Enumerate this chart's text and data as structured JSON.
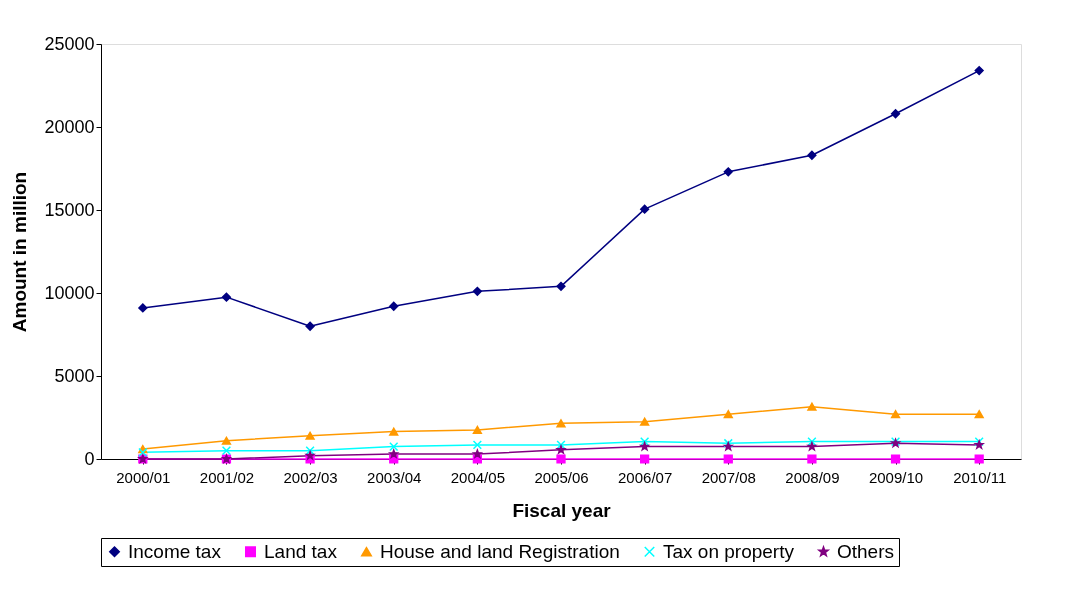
{
  "chart_data": {
    "type": "line",
    "xlabel": "Fiscal year",
    "ylabel": "Amount in million",
    "categories": [
      "2000/01",
      "2001/02",
      "2002/03",
      "2003/04",
      "2004/05",
      "2005/06",
      "2006/07",
      "2007/08",
      "2008/09",
      "2009/10",
      "2010/11"
    ],
    "series": [
      {
        "name": "Income tax",
        "color": "#000080",
        "marker": "diamond",
        "values": [
          9100,
          9750,
          8000,
          9200,
          10100,
          10400,
          15050,
          17300,
          18300,
          20800,
          23400
        ]
      },
      {
        "name": "Land tax",
        "color": "#ff00ff",
        "marker": "square",
        "values": [
          0,
          0,
          0,
          0,
          0,
          0,
          0,
          0,
          0,
          0,
          0
        ]
      },
      {
        "name": "House and land Registration",
        "color": "#ff9900",
        "marker": "triangle",
        "values": [
          600,
          1100,
          1400,
          1650,
          1750,
          2150,
          2250,
          2700,
          3150,
          2700,
          2700
        ]
      },
      {
        "name": "Tax on property",
        "color": "#00ffff",
        "marker": "cross",
        "values": [
          400,
          500,
          500,
          750,
          850,
          850,
          1050,
          950,
          1050,
          1050,
          1050
        ]
      },
      {
        "name": "Others",
        "color": "#800080",
        "marker": "star",
        "values": [
          0,
          0,
          200,
          300,
          300,
          550,
          750,
          750,
          750,
          950,
          850
        ]
      }
    ],
    "ylim": [
      0,
      25000
    ],
    "yticks": [
      0,
      5000,
      10000,
      15000,
      20000,
      25000
    ],
    "grid": false,
    "legend": "bottom",
    "line_style": "solid"
  }
}
